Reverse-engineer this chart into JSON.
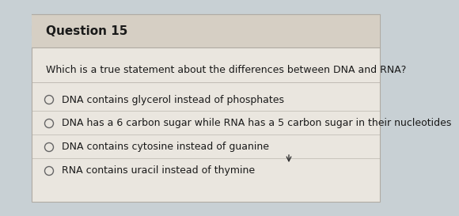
{
  "title": "Question 15",
  "question": "Which is a true statement about the differences between DNA and RNA?",
  "options": [
    "DNA contains glycerol instead of phosphates",
    "DNA has a 6 carbon sugar while RNA has a 5 carbon sugar in their nucleotides",
    "DNA contains cytosine instead of guanine",
    "RNA contains uracil instead of thymine"
  ],
  "bg_color": "#c8d0d4",
  "card_color": "#eae6df",
  "header_color": "#d6cfc4",
  "title_fontsize": 11,
  "question_fontsize": 9,
  "option_fontsize": 9,
  "text_color": "#1a1a1a",
  "circle_color": "#666666",
  "border_color": "#b0aba3"
}
